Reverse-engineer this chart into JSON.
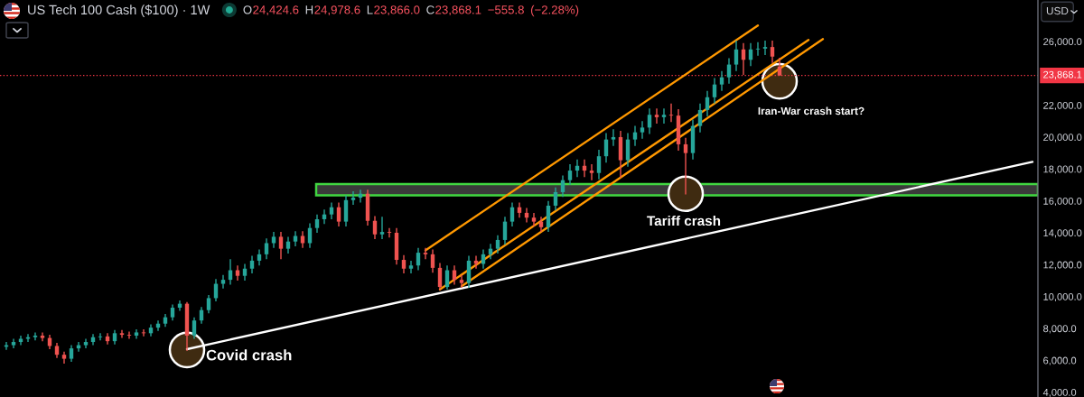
{
  "chart_data": {
    "type": "candlestick",
    "title": "US Tech 100 Cash ($100) · 1W",
    "subtitle": "O24,424.6 H24,978.6 L23,866.0 C23,868.1 −555.8 (−2.28%)",
    "ylabel": "USD",
    "categories": [
      null,
      null,
      null,
      null,
      null,
      null,
      null,
      null,
      null,
      null,
      null,
      null,
      null,
      null,
      null,
      null,
      null,
      null,
      null,
      null,
      null,
      null,
      null,
      null,
      null,
      null,
      null,
      null,
      null,
      null,
      null,
      null,
      null,
      null,
      null,
      null,
      null,
      null,
      null,
      null,
      null,
      null,
      null,
      null,
      null,
      null,
      null,
      null,
      null,
      null,
      null,
      null,
      null,
      null,
      null,
      null,
      null,
      null,
      null,
      null,
      null,
      null,
      null,
      null,
      null,
      null,
      null,
      null,
      null,
      null,
      null,
      null,
      null,
      null,
      null,
      null,
      null,
      null,
      null,
      null,
      null,
      null,
      null,
      null,
      null,
      null,
      null,
      null,
      null,
      null,
      null,
      null,
      null,
      null,
      null,
      null,
      null,
      null,
      null,
      null,
      null,
      null,
      null,
      null,
      null,
      null,
      null,
      null,
      null,
      null,
      null,
      null,
      null,
      null,
      null,
      null,
      null,
      null,
      null,
      null,
      null,
      null,
      null,
      null,
      null,
      null,
      null,
      null,
      null,
      null,
      null,
      null,
      null,
      null,
      null,
      null,
      null,
      null,
      null,
      null,
      null,
      null,
      null
    ],
    "ohlc": [
      [
        6850,
        7150,
        6650,
        6950
      ],
      [
        6950,
        7350,
        6750,
        7150
      ],
      [
        7150,
        7550,
        6950,
        7350
      ],
      [
        7350,
        7650,
        7150,
        7450
      ],
      [
        7450,
        7750,
        7250,
        7550
      ],
      [
        7550,
        7750,
        7200,
        7400
      ],
      [
        7400,
        7600,
        6700,
        6900
      ],
      [
        6900,
        7100,
        6150,
        6350
      ],
      [
        6350,
        6550,
        5800,
        6100
      ],
      [
        6100,
        6950,
        5900,
        6750
      ],
      [
        6750,
        7150,
        6550,
        6950
      ],
      [
        6950,
        7350,
        6750,
        7150
      ],
      [
        7150,
        7650,
        6950,
        7450
      ],
      [
        7450,
        7700,
        7250,
        7500
      ],
      [
        7500,
        7700,
        7000,
        7200
      ],
      [
        7200,
        7900,
        7000,
        7700
      ],
      [
        7700,
        7900,
        7400,
        7600
      ],
      [
        7600,
        7800,
        7350,
        7550
      ],
      [
        7550,
        7950,
        7350,
        7750
      ],
      [
        7750,
        7950,
        7500,
        7700
      ],
      [
        7700,
        8250,
        7500,
        8050
      ],
      [
        8050,
        8500,
        7850,
        8300
      ],
      [
        8300,
        8900,
        8100,
        8700
      ],
      [
        8700,
        9500,
        8500,
        9300
      ],
      [
        9300,
        9750,
        9100,
        9550
      ],
      [
        9550,
        9650,
        6600,
        7550
      ],
      [
        7550,
        8700,
        7350,
        8500
      ],
      [
        8500,
        9350,
        8300,
        9150
      ],
      [
        9150,
        10100,
        8950,
        9900
      ],
      [
        9900,
        11100,
        9700,
        10800
      ],
      [
        10800,
        11350,
        10500,
        11050
      ],
      [
        11050,
        12350,
        10750,
        11650
      ],
      [
        11650,
        11950,
        11000,
        11300
      ],
      [
        11300,
        12050,
        11000,
        11750
      ],
      [
        11750,
        12550,
        11450,
        12250
      ],
      [
        12250,
        12950,
        11950,
        12650
      ],
      [
        12650,
        13650,
        12350,
        13350
      ],
      [
        13350,
        14050,
        13050,
        13750
      ],
      [
        13750,
        14050,
        12350,
        13000
      ],
      [
        13000,
        13750,
        12700,
        13450
      ],
      [
        13450,
        14100,
        13150,
        13800
      ],
      [
        13800,
        14100,
        13050,
        13350
      ],
      [
        13350,
        14600,
        13050,
        14300
      ],
      [
        14300,
        15150,
        14000,
        14850
      ],
      [
        14850,
        15450,
        14550,
        15150
      ],
      [
        15150,
        15900,
        14850,
        15600
      ],
      [
        15600,
        15900,
        14400,
        14700
      ],
      [
        14700,
        16350,
        14400,
        16050
      ],
      [
        16050,
        16600,
        15750,
        16200
      ],
      [
        16200,
        16700,
        15900,
        16450
      ],
      [
        16450,
        16700,
        14450,
        14750
      ],
      [
        14750,
        15050,
        13600,
        13900
      ],
      [
        13900,
        15000,
        13600,
        14050
      ],
      [
        14050,
        14300,
        13700,
        14000
      ],
      [
        14000,
        14300,
        12000,
        12300
      ],
      [
        12300,
        12600,
        11450,
        11750
      ],
      [
        11750,
        12250,
        11450,
        11950
      ],
      [
        11950,
        13050,
        11650,
        12750
      ],
      [
        12750,
        13050,
        12350,
        12650
      ],
      [
        12650,
        12950,
        11500,
        11800
      ],
      [
        11800,
        12100,
        10400,
        10600
      ],
      [
        10600,
        11950,
        10450,
        11650
      ],
      [
        11650,
        11950,
        10750,
        11050
      ],
      [
        11050,
        11350,
        10550,
        10850
      ],
      [
        10850,
        12550,
        10550,
        12250
      ],
      [
        12250,
        12550,
        11750,
        12050
      ],
      [
        12050,
        12950,
        11750,
        12650
      ],
      [
        12650,
        13300,
        12350,
        13000
      ],
      [
        13000,
        13850,
        12700,
        13550
      ],
      [
        13550,
        15000,
        13250,
        14700
      ],
      [
        14700,
        15900,
        14400,
        15600
      ],
      [
        15600,
        15900,
        14950,
        15250
      ],
      [
        15250,
        15550,
        14650,
        14950
      ],
      [
        14950,
        15250,
        14400,
        14700
      ],
      [
        14700,
        15000,
        14050,
        14350
      ],
      [
        14350,
        16000,
        14050,
        15700
      ],
      [
        15700,
        16850,
        15400,
        16550
      ],
      [
        16550,
        17600,
        16250,
        17300
      ],
      [
        17300,
        18300,
        17000,
        17900
      ],
      [
        17900,
        18600,
        17500,
        18200
      ],
      [
        18200,
        18600,
        17500,
        17900
      ],
      [
        17900,
        18300,
        17300,
        17750
      ],
      [
        17750,
        19200,
        17350,
        18800
      ],
      [
        18800,
        20250,
        18400,
        19850
      ],
      [
        19850,
        20500,
        19450,
        20000
      ],
      [
        20000,
        20400,
        17450,
        18550
      ],
      [
        18550,
        20250,
        18150,
        19850
      ],
      [
        19850,
        20700,
        19450,
        20300
      ],
      [
        20300,
        21000,
        19900,
        20600
      ],
      [
        20600,
        21800,
        20200,
        21400
      ],
      [
        21400,
        21800,
        20850,
        21250
      ],
      [
        21250,
        21800,
        20850,
        21400
      ],
      [
        21400,
        22100,
        20950,
        21350
      ],
      [
        21350,
        21750,
        19150,
        19550
      ],
      [
        19550,
        19950,
        16400,
        19000
      ],
      [
        19000,
        21100,
        18600,
        20700
      ],
      [
        20700,
        22100,
        20300,
        21700
      ],
      [
        21700,
        22900,
        21300,
        22500
      ],
      [
        22500,
        23700,
        22100,
        23300
      ],
      [
        23300,
        24150,
        22900,
        23750
      ],
      [
        23750,
        24950,
        23350,
        24550
      ],
      [
        24550,
        26050,
        24150,
        25500
      ],
      [
        25500,
        25900,
        23900,
        24850
      ],
      [
        24850,
        25900,
        24450,
        25500
      ],
      [
        25500,
        25950,
        25100,
        25550
      ],
      [
        25550,
        26050,
        25150,
        25650
      ],
      [
        25650,
        26050,
        24650,
        25050
      ],
      [
        24424.6,
        24978.6,
        23866.0,
        23868.1
      ],
      null,
      null,
      null,
      null,
      null,
      null,
      null,
      null,
      null,
      null,
      null,
      null,
      null,
      null,
      null,
      null,
      null,
      null,
      null,
      null,
      null,
      null,
      null,
      null,
      null,
      null,
      null,
      null,
      null,
      null,
      null,
      null,
      null,
      null,
      null
    ],
    "colors": [
      "#26a69a",
      "#26a69a",
      "#26a69a",
      "#26a69a",
      "#26a69a",
      "#ef5350",
      "#ef5350",
      "#ef5350",
      "#ef5350",
      "#26a69a",
      "#26a69a",
      "#26a69a",
      "#26a69a",
      "#26a69a",
      "#ef5350",
      "#26a69a",
      "#ef5350",
      "#ef5350",
      "#26a69a",
      "#ef5350",
      "#26a69a",
      "#26a69a",
      "#26a69a",
      "#26a69a",
      "#26a69a",
      "#ef5350",
      "#26a69a",
      "#26a69a",
      "#26a69a",
      "#26a69a",
      "#26a69a",
      "#26a69a",
      "#ef5350",
      "#26a69a",
      "#26a69a",
      "#26a69a",
      "#26a69a",
      "#26a69a",
      "#ef5350",
      "#26a69a",
      "#26a69a",
      "#ef5350",
      "#26a69a",
      "#26a69a",
      "#26a69a",
      "#26a69a",
      "#ef5350",
      "#26a69a",
      "#26a69a",
      "#26a69a",
      "#ef5350",
      "#ef5350",
      "#26a69a",
      "#ef5350",
      "#ef5350",
      "#ef5350",
      "#26a69a",
      "#26a69a",
      "#ef5350",
      "#ef5350",
      "#ef5350",
      "#26a69a",
      "#ef5350",
      "#ef5350",
      "#26a69a",
      "#ef5350",
      "#26a69a",
      "#26a69a",
      "#26a69a",
      "#26a69a",
      "#26a69a",
      "#ef5350",
      "#ef5350",
      "#ef5350",
      "#ef5350",
      "#26a69a",
      "#26a69a",
      "#26a69a",
      "#26a69a",
      "#26a69a",
      "#ef5350",
      "#ef5350",
      "#26a69a",
      "#26a69a",
      "#26a69a",
      "#ef5350",
      "#26a69a",
      "#26a69a",
      "#26a69a",
      "#26a69a",
      "#ef5350",
      "#26a69a",
      "#ef5350",
      "#ef5350",
      "#ef5350",
      "#26a69a",
      "#26a69a",
      "#26a69a",
      "#26a69a",
      "#26a69a",
      "#26a69a",
      "#26a69a",
      "#ef5350",
      "#26a69a",
      "#26a69a",
      "#26a69a",
      "#ef5350",
      "#ef5350",
      null,
      null,
      null,
      null,
      null,
      null,
      null,
      null,
      null,
      null,
      null,
      null,
      null,
      null,
      null,
      null,
      null,
      null,
      null,
      null,
      null,
      null,
      null,
      null,
      null,
      null,
      null,
      null,
      null,
      null,
      null,
      null,
      null,
      null,
      null
    ],
    "series": [
      {
        "type": "line",
        "color": "#ff9800",
        "values": [
          null,
          null,
          null,
          null,
          null,
          null,
          null,
          null,
          null,
          null,
          null,
          null,
          null,
          null,
          null,
          null,
          null,
          null,
          null,
          null,
          null,
          null,
          null,
          null,
          null,
          null,
          null,
          null,
          null,
          null,
          null,
          null,
          null,
          null,
          null,
          null,
          null,
          null,
          null,
          null,
          null,
          null,
          null,
          null,
          null,
          null,
          null,
          null,
          null,
          null,
          null,
          null,
          null,
          null,
          null,
          null,
          null,
          null,
          12900,
          null,
          null,
          null,
          null,
          null,
          null,
          null,
          null,
          null,
          null,
          null,
          null,
          null,
          null,
          null,
          null,
          null,
          null,
          null,
          null,
          null,
          null,
          null,
          null,
          null,
          null,
          null,
          null,
          null,
          null,
          null,
          null,
          null,
          null,
          null,
          null,
          null,
          null,
          null,
          null,
          null,
          null,
          null,
          null,
          null,
          27000,
          null,
          null,
          null,
          null,
          null,
          null,
          null,
          null,
          null,
          null,
          null,
          null,
          null,
          null,
          null,
          null,
          null,
          null,
          null,
          null,
          null,
          null,
          null,
          null,
          null,
          null,
          null,
          null,
          null,
          null,
          null,
          null,
          null,
          null,
          null,
          null,
          null,
          null
        ]
      },
      {
        "type": "line",
        "color": "#ff9800",
        "values": [
          null,
          null,
          null,
          null,
          null,
          null,
          null,
          null,
          null,
          null,
          null,
          null,
          null,
          null,
          null,
          null,
          null,
          null,
          null,
          null,
          null,
          null,
          null,
          null,
          null,
          null,
          null,
          null,
          null,
          null,
          null,
          null,
          null,
          null,
          null,
          null,
          null,
          null,
          null,
          null,
          null,
          null,
          null,
          null,
          null,
          null,
          null,
          null,
          null,
          null,
          null,
          null,
          null,
          null,
          null,
          null,
          null,
          null,
          null,
          null,
          10450,
          null,
          null,
          null,
          null,
          null,
          null,
          null,
          null,
          null,
          null,
          null,
          null,
          null,
          null,
          null,
          null,
          null,
          null,
          null,
          null,
          null,
          null,
          null,
          null,
          null,
          null,
          null,
          null,
          null,
          null,
          null,
          null,
          null,
          null,
          null,
          null,
          null,
          null,
          null,
          null,
          null,
          null,
          null,
          null,
          null,
          null,
          null,
          null,
          null,
          null,
          26100,
          null,
          null,
          null,
          null,
          null,
          null,
          null,
          null,
          null,
          null,
          null,
          null,
          null,
          null,
          null,
          null,
          null,
          null,
          null,
          null,
          null,
          null,
          null,
          null,
          null,
          null,
          null,
          null,
          null,
          null,
          null
        ]
      },
      {
        "type": "line",
        "color": "#ff9800",
        "values": [
          null,
          null,
          null,
          null,
          null,
          null,
          null,
          null,
          null,
          null,
          null,
          null,
          null,
          null,
          null,
          null,
          null,
          null,
          null,
          null,
          null,
          null,
          null,
          null,
          null,
          null,
          null,
          null,
          null,
          null,
          null,
          null,
          null,
          null,
          null,
          null,
          null,
          null,
          null,
          null,
          null,
          null,
          null,
          null,
          null,
          null,
          null,
          null,
          null,
          null,
          null,
          null,
          null,
          null,
          null,
          null,
          null,
          null,
          null,
          null,
          null,
          null,
          null,
          10650,
          null,
          null,
          null,
          null,
          null,
          null,
          null,
          null,
          null,
          null,
          null,
          null,
          null,
          null,
          null,
          null,
          null,
          null,
          null,
          null,
          null,
          null,
          null,
          null,
          null,
          null,
          null,
          null,
          null,
          null,
          null,
          null,
          null,
          null,
          null,
          null,
          null,
          null,
          null,
          null,
          null,
          null,
          null,
          null,
          null,
          null,
          null,
          null,
          null,
          26150,
          null,
          null,
          null,
          null,
          null,
          null,
          null,
          null,
          null,
          null,
          null,
          null,
          null,
          null,
          null,
          null,
          null,
          null,
          null,
          null,
          null,
          null,
          null,
          null,
          null,
          null,
          null,
          null,
          null
        ]
      },
      {
        "type": "line",
        "color": "#ffffff",
        "values": [
          null,
          null,
          null,
          null,
          null,
          null,
          null,
          null,
          null,
          null,
          null,
          null,
          null,
          null,
          null,
          null,
          null,
          null,
          null,
          null,
          null,
          null,
          null,
          null,
          null,
          6700,
          null,
          null,
          null,
          null,
          null,
          null,
          null,
          null,
          null,
          null,
          null,
          null,
          null,
          null,
          null,
          null,
          null,
          null,
          null,
          null,
          null,
          null,
          null,
          null,
          null,
          null,
          null,
          null,
          null,
          null,
          null,
          null,
          null,
          null,
          null,
          null,
          null,
          null,
          null,
          null,
          null,
          null,
          null,
          null,
          null,
          null,
          null,
          null,
          null,
          null,
          null,
          null,
          null,
          null,
          null,
          null,
          null,
          null,
          null,
          null,
          null,
          null,
          null,
          null,
          null,
          null,
          null,
          null,
          null,
          null,
          null,
          null,
          null,
          null,
          null,
          null,
          null,
          null,
          null,
          null,
          null,
          null,
          null,
          null,
          null,
          null,
          null,
          null,
          null,
          null,
          null,
          null,
          null,
          null,
          null,
          null,
          null,
          null,
          null,
          null,
          null,
          null,
          null,
          null,
          null,
          null,
          null,
          null,
          null,
          null,
          null,
          null,
          null,
          null,
          null,
          null,
          18450
        ]
      },
      {
        "type": "scatter",
        "color": "#3f2b11",
        "marker": "circle",
        "values": [
          null,
          null,
          null,
          null,
          null,
          null,
          null,
          null,
          null,
          null,
          null,
          null,
          null,
          null,
          null,
          null,
          null,
          null,
          null,
          null,
          null,
          null,
          null,
          null,
          null,
          6650,
          null,
          null,
          null,
          null,
          null,
          null,
          null,
          null,
          null,
          null,
          null,
          null,
          null,
          null,
          null,
          null,
          null,
          null,
          null,
          null,
          null,
          null,
          null,
          null,
          null,
          null,
          null,
          null,
          null,
          null,
          null,
          null,
          null,
          null,
          null,
          null,
          null,
          null,
          null,
          null,
          null,
          null,
          null,
          null,
          null,
          null,
          null,
          null,
          null,
          null,
          null,
          null,
          null,
          null,
          null,
          null,
          null,
          null,
          null,
          null,
          null,
          null,
          null,
          null,
          null,
          null,
          null,
          null,
          16450,
          null,
          null,
          null,
          null,
          null,
          null,
          null,
          null,
          null,
          null,
          null,
          null,
          23500,
          null,
          null,
          null,
          null,
          null,
          null,
          null,
          null,
          null,
          null,
          null,
          null,
          null,
          null,
          null,
          null,
          null,
          null,
          null,
          null,
          null,
          null,
          null,
          null,
          null,
          null,
          null,
          null,
          null,
          null,
          null,
          null,
          null,
          null,
          null
        ]
      }
    ],
    "ylim": [
      3700,
      28600
    ],
    "yticks": [
      {
        "value": 4000,
        "label": "4,000.0"
      },
      {
        "value": 6000,
        "label": "6,000.0"
      },
      {
        "value": 8000,
        "label": "8,000.0"
      },
      {
        "value": 10000,
        "label": "10,000.0"
      },
      {
        "value": 12000,
        "label": "12,000.0"
      },
      {
        "value": 14000,
        "label": "14,000.0"
      },
      {
        "value": 16000,
        "label": "16,000.0"
      },
      {
        "value": 18000,
        "label": "18,000.0"
      },
      {
        "value": 20000,
        "label": "20,000.0"
      },
      {
        "value": 22000,
        "label": "22,000.0"
      },
      {
        "value": 26000,
        "label": "26,000.0"
      }
    ],
    "tick_labels": "y",
    "ref_lines": [
      {
        "axis": "y",
        "value": 23868.1,
        "label": "23,868.1",
        "color": "#f23645",
        "line_style": "dotted"
      }
    ],
    "bands": [
      {
        "axis": "y",
        "from": 16350,
        "to": 17050,
        "color": "#3a3a3a"
      }
    ],
    "annotations": [
      "Covid crash",
      "Tariff crash",
      "Iran-War crash start?"
    ]
  }
}
